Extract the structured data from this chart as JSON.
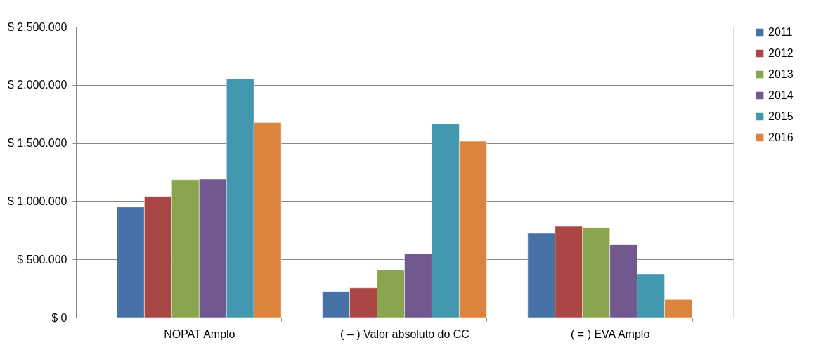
{
  "chart_data": {
    "type": "bar",
    "categories": [
      "NOPAT Amplo",
      "( – ) Valor absoluto do CC",
      "( = ) EVA Amplo"
    ],
    "series": [
      {
        "name": "2011",
        "color": "#4672a8",
        "values": [
          950000,
          225000,
          725000
        ]
      },
      {
        "name": "2012",
        "color": "#aa4744",
        "values": [
          1040000,
          255000,
          785000
        ]
      },
      {
        "name": "2013",
        "color": "#89a54e",
        "values": [
          1185000,
          410000,
          775000
        ]
      },
      {
        "name": "2014",
        "color": "#71588f",
        "values": [
          1190000,
          550000,
          630000
        ]
      },
      {
        "name": "2015",
        "color": "#4298af",
        "values": [
          2050000,
          1665000,
          375000
        ]
      },
      {
        "name": "2016",
        "color": "#db843d",
        "values": [
          1675000,
          1515000,
          155000
        ]
      }
    ],
    "ylim": [
      0,
      2500000
    ],
    "yticks": [
      {
        "value": 0,
        "label": "$ 0"
      },
      {
        "value": 500000,
        "label": "$ 500.000"
      },
      {
        "value": 1000000,
        "label": "$ 1.000.000"
      },
      {
        "value": 1500000,
        "label": "$ 1.500.000"
      },
      {
        "value": 2000000,
        "label": "$ 2.000.000"
      },
      {
        "value": 2500000,
        "label": "$ 2.500.000"
      }
    ],
    "grid": "y",
    "legend": "right"
  }
}
